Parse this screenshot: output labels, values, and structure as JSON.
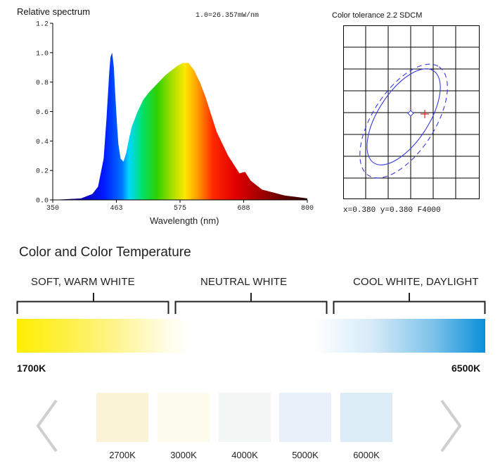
{
  "spectrum": {
    "title": "Relative spectrum",
    "scale_note": "1.0=26.357mW/nm",
    "x_label": "Wavelength (nm)",
    "x_ticks": [
      "350",
      "463",
      "575",
      "688",
      "800"
    ],
    "y_ticks": [
      "0.0",
      "0.2",
      "0.4",
      "0.6",
      "0.8",
      "1.0",
      "1.2"
    ]
  },
  "chart_data": {
    "type": "area",
    "x": [
      350,
      400,
      420,
      430,
      440,
      445,
      450,
      452,
      455,
      458,
      460,
      463,
      466,
      470,
      475,
      480,
      485,
      490,
      500,
      510,
      520,
      530,
      540,
      550,
      560,
      570,
      580,
      590,
      600,
      610,
      620,
      630,
      640,
      660,
      680,
      690,
      700,
      720,
      740,
      760,
      780,
      800
    ],
    "y": [
      0.0,
      0.01,
      0.04,
      0.09,
      0.28,
      0.55,
      0.87,
      0.97,
      1.0,
      0.9,
      0.75,
      0.55,
      0.38,
      0.28,
      0.26,
      0.32,
      0.42,
      0.5,
      0.6,
      0.68,
      0.73,
      0.77,
      0.81,
      0.85,
      0.88,
      0.91,
      0.93,
      0.93,
      0.88,
      0.8,
      0.7,
      0.58,
      0.46,
      0.3,
      0.18,
      0.19,
      0.13,
      0.07,
      0.05,
      0.03,
      0.02,
      0.01
    ],
    "xlabel": "Wavelength (nm)",
    "xlim": [
      350,
      800
    ],
    "ylim": [
      0,
      1.2
    ]
  },
  "tolerance": {
    "title": "Color tolerance  2.2 SDCM",
    "readout": "x=0.380 y=0.380 F4000"
  },
  "color_section": {
    "title": "Color and Color Temperature",
    "ranges": [
      "SOFT, WARM WHITE",
      "NEUTRAL WHITE",
      "COOL WHITE, DAYLIGHT"
    ],
    "min_label": "1700K",
    "max_label": "6500K",
    "swatches": [
      {
        "label": "2700K",
        "color": "#fbf3d6"
      },
      {
        "label": "3000K",
        "color": "#fdfbeb"
      },
      {
        "label": "4000K",
        "color": "#f2f6f4"
      },
      {
        "label": "5000K",
        "color": "#e9f0f9"
      },
      {
        "label": "6000K",
        "color": "#dbecf7"
      }
    ]
  },
  "icons": {
    "prev": "chevron-left-icon",
    "next": "chevron-right-icon"
  }
}
